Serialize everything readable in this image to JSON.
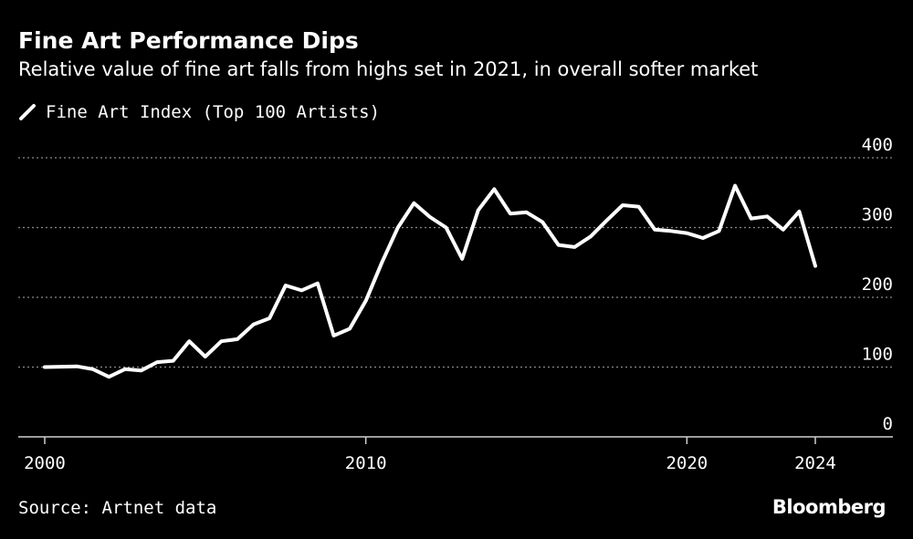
{
  "chart_data": {
    "type": "line",
    "title": "Fine Art Performance Dips",
    "subtitle": "Relative value of fine art falls from highs set in 2021, in overall softer market",
    "source": "Source: Artnet data",
    "brand": "Bloomberg",
    "legend": [
      {
        "name": "Fine Art Index (Top 100 Artists)",
        "color": "#ffffff"
      }
    ],
    "legend_placement": "top-left",
    "grid": true,
    "x_ticks": [
      2000,
      2010,
      2020,
      2024
    ],
    "x_tick_labels": [
      "2000",
      "2010",
      "2020",
      "2024"
    ],
    "y_ticks": [
      0,
      100,
      200,
      300,
      400
    ],
    "y_tick_labels": [
      "0",
      "100",
      "200",
      "300",
      "400"
    ],
    "xlim": [
      2000,
      2024
    ],
    "ylim": [
      0,
      400
    ],
    "series": [
      {
        "name": "Fine Art Index (Top 100 Artists)",
        "color": "#ffffff",
        "x": [
          2000.0,
          2001.0,
          2001.5,
          2002.0,
          2002.5,
          2003.0,
          2003.5,
          2004.0,
          2004.5,
          2005.0,
          2005.5,
          2006.0,
          2006.5,
          2007.0,
          2007.5,
          2008.0,
          2008.5,
          2009.0,
          2009.5,
          2010.0,
          2010.5,
          2011.0,
          2011.5,
          2012.0,
          2012.5,
          2013.0,
          2013.5,
          2014.0,
          2014.5,
          2015.0,
          2015.5,
          2016.0,
          2016.5,
          2017.0,
          2017.5,
          2018.0,
          2018.5,
          2019.0,
          2019.5,
          2020.0,
          2020.5,
          2021.0,
          2021.5,
          2022.0,
          2022.5,
          2023.0,
          2023.5,
          2024.0
        ],
        "y": [
          100,
          101,
          97,
          86,
          97,
          95,
          107,
          109,
          137,
          115,
          137,
          140,
          161,
          170,
          217,
          210,
          220,
          145,
          155,
          195,
          250,
          300,
          335,
          315,
          300,
          255,
          325,
          355,
          320,
          322,
          308,
          275,
          272,
          287,
          310,
          332,
          330,
          297,
          295,
          292,
          285,
          295,
          360,
          313,
          316,
          297,
          323,
          245
        ]
      }
    ]
  }
}
